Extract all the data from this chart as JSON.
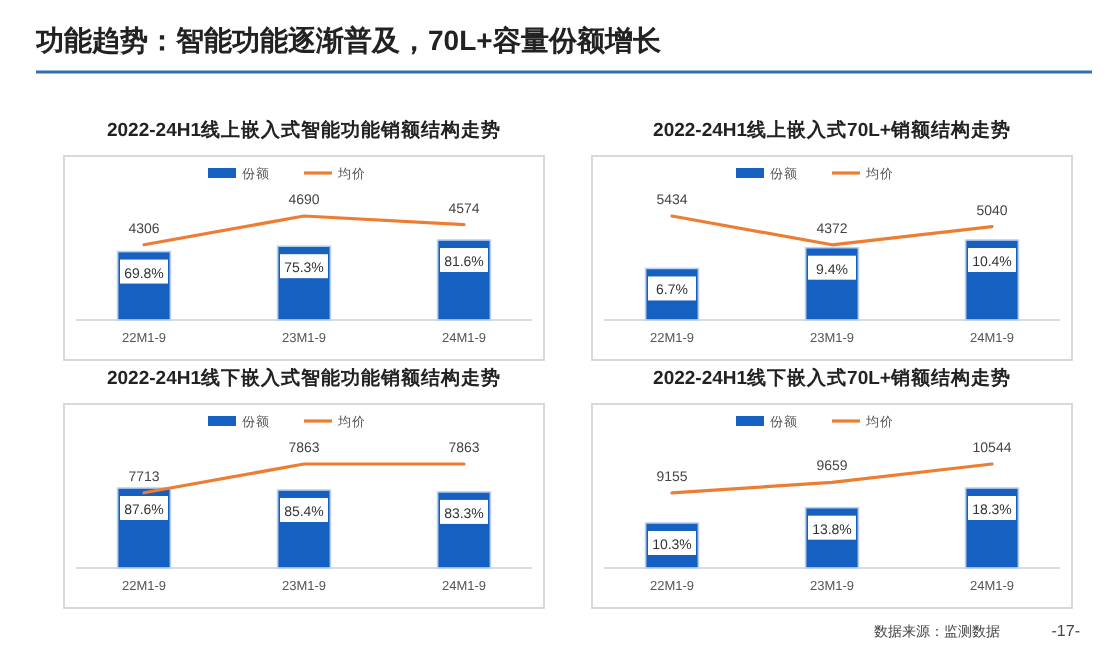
{
  "chart_data": [
    {
      "type": "other",
      "title": "功能趋势：智能功能逐渐普及，70L+容量份额增长",
      "annotations": [
        "数据来源：监测数据",
        "-17-"
      ]
    },
    {
      "type": "bar",
      "title": "2022-24H1线上嵌入式智能功能销额结构走势",
      "categories": [
        "22M1-9",
        "23M1-9",
        "24M1-9"
      ],
      "legend": "top",
      "series": [
        {
          "name": "份额",
          "color": "#1560c0",
          "values": [
            69.8,
            75.3,
            81.6
          ],
          "value_labels": [
            "69.8%",
            "75.3%",
            "81.6%"
          ]
        },
        {
          "name": "均价",
          "type": "line",
          "axis": "y2",
          "color": "#ed7d31",
          "values": [
            4306,
            4690,
            4574
          ],
          "value_labels": [
            "4306",
            "4690",
            "4574"
          ]
        }
      ]
    },
    {
      "type": "bar",
      "title": "2022-24H1线上嵌入式70L+销额结构走势",
      "categories": [
        "22M1-9",
        "23M1-9",
        "24M1-9"
      ],
      "legend": "top",
      "series": [
        {
          "name": "份额",
          "color": "#1560c0",
          "values": [
            6.7,
            9.4,
            10.4
          ],
          "value_labels": [
            "6.7%",
            "9.4%",
            "10.4%"
          ]
        },
        {
          "name": "均价",
          "type": "line",
          "axis": "y2",
          "color": "#ed7d31",
          "values": [
            5434,
            4372,
            5040
          ],
          "value_labels": [
            "5434",
            "4372",
            "5040"
          ]
        }
      ]
    },
    {
      "type": "bar",
      "title": "2022-24H1线下嵌入式智能功能销额结构走势",
      "categories": [
        "22M1-9",
        "23M1-9",
        "24M1-9"
      ],
      "legend": "top",
      "series": [
        {
          "name": "份额",
          "color": "#1560c0",
          "values": [
            87.6,
            85.4,
            83.3
          ],
          "value_labels": [
            "87.6%",
            "85.4%",
            "83.3%"
          ]
        },
        {
          "name": "均价",
          "type": "line",
          "axis": "y2",
          "color": "#ed7d31",
          "values": [
            7713,
            7863,
            7863
          ],
          "value_labels": [
            "7713",
            "7863",
            "7863"
          ]
        }
      ]
    },
    {
      "type": "bar",
      "title": "2022-24H1线下嵌入式70L+销额结构走势",
      "categories": [
        "22M1-9",
        "23M1-9",
        "24M1-9"
      ],
      "legend": "top",
      "series": [
        {
          "name": "份额",
          "color": "#1560c0",
          "values": [
            10.3,
            13.8,
            18.3
          ],
          "value_labels": [
            "10.3%",
            "13.8%",
            "18.3%"
          ]
        },
        {
          "name": "均价",
          "type": "line",
          "axis": "y2",
          "color": "#ed7d31",
          "values": [
            9155,
            9659,
            10544
          ],
          "value_labels": [
            "9155",
            "9659",
            "10544"
          ]
        }
      ]
    }
  ]
}
